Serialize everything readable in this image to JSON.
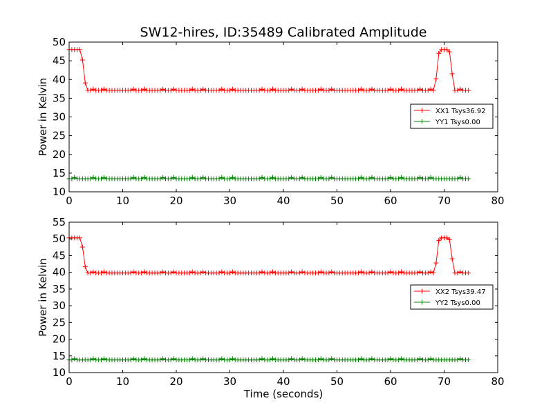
{
  "figure_title": "SW12-hires, ID:35489 Calibrated Amplitude",
  "colors": {
    "xx": "#ff0000",
    "yy": "#008000"
  },
  "chart_data": [
    {
      "type": "line",
      "title": "SW12-hires, ID:35489 Calibrated Amplitude",
      "xlabel": "",
      "ylabel": "Power in Kelvin",
      "xlim": [
        0,
        80
      ],
      "ylim": [
        10,
        50
      ],
      "xticks": [
        0,
        10,
        20,
        30,
        40,
        50,
        60,
        70,
        80
      ],
      "yticks": [
        10,
        15,
        20,
        25,
        30,
        35,
        40,
        45,
        50
      ],
      "grid": false,
      "legend_position": "center-right",
      "x": {
        "start": 0,
        "end": 74.5,
        "step": 0.5
      },
      "series": [
        {
          "name": "XX1 Tsys36.92",
          "color": "#ff0000",
          "marker": "+",
          "baseline": 37.1,
          "segments": [
            {
              "x": 0,
              "y": 48.0
            },
            {
              "x": 2.3,
              "y": 48.0
            },
            {
              "x": 2.8,
              "y": 41.0
            },
            {
              "x": 3.2,
              "y": 37.2
            },
            {
              "x": 68.2,
              "y": 37.2
            },
            {
              "x": 68.6,
              "y": 41.2
            },
            {
              "x": 69.0,
              "y": 47.0
            },
            {
              "x": 69.4,
              "y": 48.0
            },
            {
              "x": 70.8,
              "y": 48.0
            },
            {
              "x": 71.2,
              "y": 46.8
            },
            {
              "x": 71.6,
              "y": 39.8
            },
            {
              "x": 72.0,
              "y": 37.2
            },
            {
              "x": 74.5,
              "y": 37.2
            }
          ]
        },
        {
          "name": "YY1 Tsys0.00",
          "color": "#008000",
          "marker": "+",
          "baseline": 13.5,
          "segments": [
            {
              "x": 0,
              "y": 13.5
            },
            {
              "x": 74.5,
              "y": 13.5
            }
          ]
        }
      ]
    },
    {
      "type": "line",
      "title": "",
      "xlabel": "Time (seconds)",
      "ylabel": "Power in Kelvin",
      "xlim": [
        0,
        80
      ],
      "ylim": [
        10,
        55
      ],
      "xticks": [
        0,
        10,
        20,
        30,
        40,
        50,
        60,
        70,
        80
      ],
      "yticks": [
        10,
        15,
        20,
        25,
        30,
        35,
        40,
        45,
        50,
        55
      ],
      "grid": false,
      "legend_position": "center-right",
      "x": {
        "start": 0,
        "end": 74.5,
        "step": 0.5
      },
      "series": [
        {
          "name": "XX2 Tsys39.47",
          "color": "#ff0000",
          "marker": "+",
          "baseline": 39.8,
          "segments": [
            {
              "x": 0,
              "y": 50.3
            },
            {
              "x": 2.3,
              "y": 50.3
            },
            {
              "x": 2.8,
              "y": 43.5
            },
            {
              "x": 3.2,
              "y": 39.8
            },
            {
              "x": 68.2,
              "y": 39.8
            },
            {
              "x": 68.6,
              "y": 43.8
            },
            {
              "x": 69.0,
              "y": 49.5
            },
            {
              "x": 69.4,
              "y": 50.3
            },
            {
              "x": 70.8,
              "y": 50.3
            },
            {
              "x": 71.2,
              "y": 49.3
            },
            {
              "x": 71.6,
              "y": 42.3
            },
            {
              "x": 72.0,
              "y": 39.8
            },
            {
              "x": 74.5,
              "y": 39.8
            }
          ]
        },
        {
          "name": "YY2 Tsys0.00",
          "color": "#008000",
          "marker": "+",
          "baseline": 13.8,
          "segments": [
            {
              "x": 0,
              "y": 13.8
            },
            {
              "x": 74.5,
              "y": 13.8
            }
          ]
        }
      ]
    }
  ]
}
